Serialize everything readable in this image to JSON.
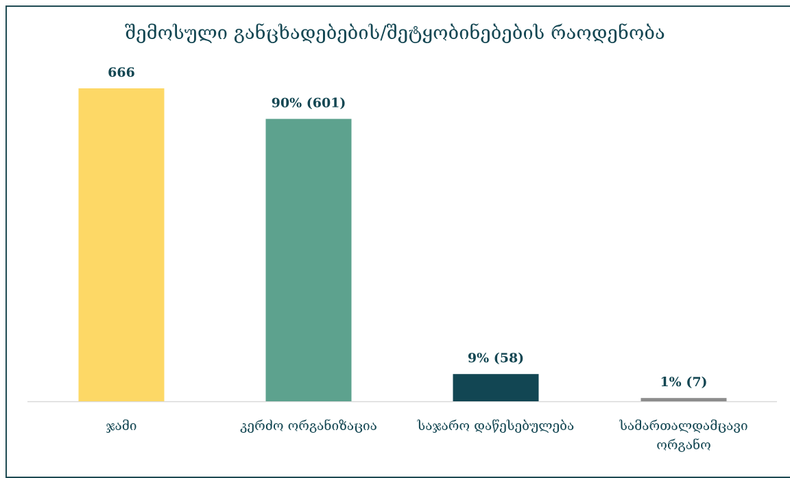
{
  "chart_data": {
    "type": "bar",
    "title": "შემოსული განცხადებების/შეტყობინებების რაოდენობა",
    "xlabel": "",
    "ylabel": "",
    "ylim": [
      0,
      666
    ],
    "grid": false,
    "categories": [
      [
        "ჯამი"
      ],
      [
        "კერძო ორგანიზაცია"
      ],
      [
        "საჯარო დაწესებულება"
      ],
      [
        "სამართალდამცავი",
        "ორგანო"
      ]
    ],
    "values": [
      666,
      601,
      58,
      7
    ],
    "data_labels": [
      "666",
      "90% (601)",
      "9% (58)",
      "1% (7)"
    ],
    "colors": [
      "#FDD866",
      "#5DA28E",
      "#124653",
      "#8C8C8C"
    ],
    "axis_color": "#D9D9D9",
    "text_color": "#134652"
  }
}
